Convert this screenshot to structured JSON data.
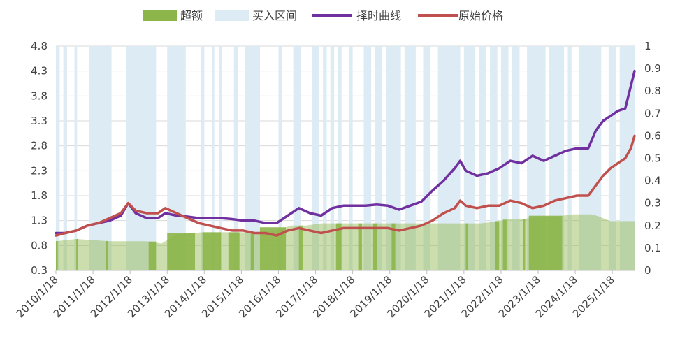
{
  "chart_data": {
    "type": "line",
    "legend": {
      "placement": "top",
      "items": [
        {
          "label": "超额",
          "kind": "area",
          "color": "#8db64a"
        },
        {
          "label": "买入区间",
          "kind": "area",
          "color": "#ddebf4"
        },
        {
          "label": "择时曲线",
          "kind": "line",
          "color": "#7030a0"
        },
        {
          "label": "原始价格",
          "kind": "line",
          "color": "#c0504d"
        }
      ]
    },
    "x_tick_labels": [
      "2010/1/18",
      "2011/1/18",
      "2012/1/18",
      "2013/1/18",
      "2014/1/18",
      "2015/1/18",
      "2016/1/18",
      "2017/1/18",
      "2018/1/18",
      "2019/1/18",
      "2020/1/18",
      "2021/1/18",
      "2022/1/18",
      "2023/1/18",
      "2024/1/18",
      "2025/1/18"
    ],
    "x_start": 2010.05,
    "x_end": 2025.65,
    "y_left": {
      "min": 0.3,
      "max": 4.8,
      "ticks": [
        "0.3",
        "0.8",
        "1.3",
        "1.8",
        "2.3",
        "2.8",
        "3.3",
        "3.8",
        "4.3",
        "4.8"
      ]
    },
    "y_right": {
      "min": 0,
      "max": 1,
      "ticks": [
        "0",
        "0.1",
        "0.2",
        "0.3",
        "0.4",
        "0.5",
        "0.6",
        "0.7",
        "0.8",
        "0.9",
        "1"
      ]
    },
    "grid": true,
    "series": [
      {
        "name": "择时曲线",
        "axis": "left",
        "color": "#7030a0",
        "x": [
          2010.05,
          2010.3,
          2010.6,
          2010.9,
          2011.2,
          2011.5,
          2011.8,
          2012.0,
          2012.2,
          2012.5,
          2012.8,
          2013.0,
          2013.3,
          2013.6,
          2013.9,
          2014.2,
          2014.5,
          2014.8,
          2015.1,
          2015.4,
          2015.7,
          2016.0,
          2016.3,
          2016.6,
          2016.9,
          2017.2,
          2017.5,
          2017.8,
          2018.1,
          2018.4,
          2018.7,
          2019.0,
          2019.3,
          2019.6,
          2019.9,
          2020.2,
          2020.5,
          2020.8,
          2020.95,
          2021.1,
          2021.4,
          2021.7,
          2022.0,
          2022.3,
          2022.6,
          2022.9,
          2023.2,
          2023.5,
          2023.8,
          2024.1,
          2024.4,
          2024.6,
          2024.8,
          2025.0,
          2025.2,
          2025.4,
          2025.55,
          2025.65
        ],
        "values": [
          1.05,
          1.05,
          1.1,
          1.2,
          1.25,
          1.3,
          1.4,
          1.65,
          1.45,
          1.35,
          1.35,
          1.45,
          1.4,
          1.38,
          1.35,
          1.35,
          1.35,
          1.33,
          1.3,
          1.3,
          1.25,
          1.25,
          1.4,
          1.55,
          1.45,
          1.4,
          1.55,
          1.6,
          1.6,
          1.6,
          1.62,
          1.6,
          1.52,
          1.6,
          1.68,
          1.9,
          2.1,
          2.35,
          2.5,
          2.3,
          2.2,
          2.25,
          2.35,
          2.5,
          2.45,
          2.6,
          2.5,
          2.6,
          2.7,
          2.75,
          2.75,
          3.1,
          3.3,
          3.4,
          3.5,
          3.55,
          4.0,
          4.3
        ]
      },
      {
        "name": "原始价格",
        "axis": "left",
        "color": "#c0504d",
        "x": [
          2010.05,
          2010.3,
          2010.6,
          2010.9,
          2011.2,
          2011.5,
          2011.8,
          2012.0,
          2012.2,
          2012.5,
          2012.8,
          2013.0,
          2013.3,
          2013.6,
          2013.9,
          2014.2,
          2014.5,
          2014.8,
          2015.1,
          2015.4,
          2015.7,
          2016.0,
          2016.3,
          2016.6,
          2016.9,
          2017.2,
          2017.5,
          2017.8,
          2018.1,
          2018.4,
          2018.7,
          2019.0,
          2019.3,
          2019.6,
          2019.9,
          2020.2,
          2020.5,
          2020.8,
          2020.95,
          2021.1,
          2021.4,
          2021.7,
          2022.0,
          2022.3,
          2022.6,
          2022.9,
          2023.2,
          2023.5,
          2023.8,
          2024.1,
          2024.4,
          2024.6,
          2024.8,
          2025.0,
          2025.2,
          2025.4,
          2025.55,
          2025.65
        ],
        "values": [
          1.0,
          1.05,
          1.1,
          1.2,
          1.25,
          1.35,
          1.45,
          1.65,
          1.5,
          1.45,
          1.45,
          1.55,
          1.45,
          1.35,
          1.25,
          1.2,
          1.15,
          1.1,
          1.1,
          1.05,
          1.05,
          1.0,
          1.1,
          1.15,
          1.1,
          1.05,
          1.1,
          1.15,
          1.15,
          1.15,
          1.15,
          1.15,
          1.1,
          1.15,
          1.2,
          1.3,
          1.45,
          1.55,
          1.7,
          1.6,
          1.55,
          1.6,
          1.6,
          1.7,
          1.65,
          1.55,
          1.6,
          1.7,
          1.75,
          1.8,
          1.8,
          2.0,
          2.2,
          2.35,
          2.45,
          2.55,
          2.75,
          3.0
        ]
      },
      {
        "name": "超额",
        "axis": "right",
        "color": "#8db64a",
        "x": [
          2010.05,
          2010.6,
          2011.5,
          2012.0,
          2012.5,
          2012.9,
          2013.0,
          2013.3,
          2014.0,
          2014.5,
          2015.0,
          2015.5,
          2016.0,
          2016.4,
          2016.8,
          2017.2,
          2017.5,
          2018.0,
          2018.5,
          2019.0,
          2019.5,
          2020.0,
          2020.5,
          2021.0,
          2021.5,
          2022.0,
          2022.3,
          2022.7,
          2023.0,
          2023.5,
          2024.0,
          2024.5,
          2024.7,
          2025.0,
          2025.65
        ],
        "values": [
          0.13,
          0.14,
          0.13,
          0.13,
          0.13,
          0.12,
          0.13,
          0.16,
          0.17,
          0.17,
          0.17,
          0.17,
          0.18,
          0.2,
          0.2,
          0.21,
          0.21,
          0.21,
          0.21,
          0.21,
          0.21,
          0.21,
          0.21,
          0.21,
          0.21,
          0.22,
          0.23,
          0.23,
          0.24,
          0.24,
          0.25,
          0.25,
          0.24,
          0.22,
          0.22
        ]
      }
    ],
    "buy_zones": [
      [
        2010.05,
        2010.15
      ],
      [
        2010.25,
        2010.35
      ],
      [
        2010.55,
        2010.62
      ],
      [
        2010.95,
        2011.55
      ],
      [
        2011.95,
        2012.75
      ],
      [
        2013.05,
        2013.55
      ],
      [
        2013.95,
        2014.05
      ],
      [
        2014.25,
        2014.32
      ],
      [
        2014.45,
        2014.52
      ],
      [
        2014.85,
        2014.95
      ],
      [
        2015.15,
        2015.55
      ],
      [
        2016.05,
        2016.15
      ],
      [
        2016.45,
        2016.65
      ],
      [
        2016.95,
        2017.15
      ],
      [
        2017.25,
        2017.35
      ],
      [
        2017.45,
        2017.55
      ],
      [
        2017.65,
        2017.75
      ],
      [
        2017.95,
        2018.05
      ],
      [
        2018.35,
        2018.55
      ],
      [
        2018.65,
        2018.85
      ],
      [
        2018.95,
        2019.35
      ],
      [
        2019.45,
        2019.75
      ],
      [
        2019.95,
        2020.15
      ],
      [
        2020.35,
        2020.95
      ],
      [
        2021.05,
        2021.35
      ],
      [
        2021.45,
        2021.65
      ],
      [
        2021.75,
        2021.95
      ],
      [
        2022.05,
        2022.25
      ],
      [
        2022.35,
        2022.55
      ],
      [
        2022.75,
        2023.25
      ],
      [
        2023.35,
        2023.75
      ],
      [
        2023.85,
        2023.95
      ],
      [
        2024.15,
        2024.75
      ],
      [
        2024.95,
        2025.15
      ],
      [
        2025.25,
        2025.65
      ]
    ],
    "excess_highlights": [
      [
        2010.05,
        2010.1
      ],
      [
        2010.6,
        2010.65
      ],
      [
        2011.4,
        2011.45
      ],
      [
        2012.55,
        2012.75
      ],
      [
        2013.05,
        2013.8
      ],
      [
        2014.0,
        2014.5
      ],
      [
        2014.7,
        2015.0
      ],
      [
        2015.3,
        2015.4
      ],
      [
        2015.55,
        2016.25
      ],
      [
        2016.6,
        2016.7
      ],
      [
        2017.6,
        2017.75
      ],
      [
        2018.2,
        2018.3
      ],
      [
        2018.6,
        2018.7
      ],
      [
        2019.1,
        2019.2
      ],
      [
        2021.1,
        2021.15
      ],
      [
        2021.9,
        2022.0
      ],
      [
        2022.1,
        2022.2
      ],
      [
        2022.65,
        2022.7
      ],
      [
        2022.8,
        2023.7
      ]
    ]
  }
}
